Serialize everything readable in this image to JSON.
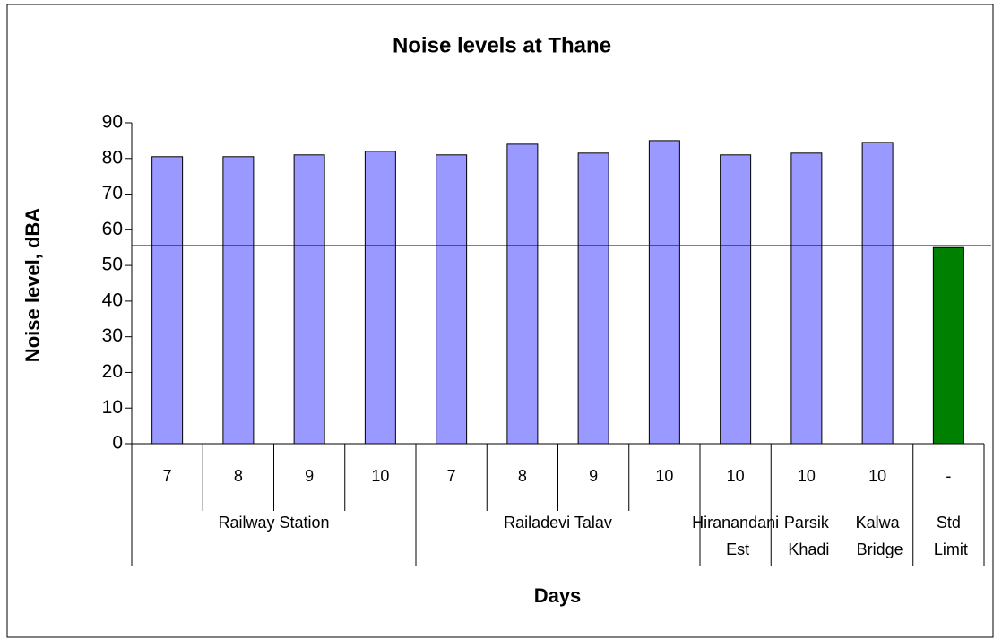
{
  "chart_data": {
    "type": "bar",
    "title": "Noise levels at Thane",
    "xlabel": "Days",
    "ylabel": "Noise level, dBA",
    "ylim": [
      0,
      90
    ],
    "yticks": [
      0,
      10,
      20,
      30,
      40,
      50,
      60,
      70,
      80,
      90
    ],
    "reference_line": 55.5,
    "groups": [
      {
        "name": "Railway Station",
        "categories": [
          "7",
          "8",
          "9",
          "10"
        ],
        "values": [
          80.5,
          80.5,
          81,
          82
        ],
        "color": "#9999ff"
      },
      {
        "name": "Railadevi Talav",
        "categories": [
          "7",
          "8",
          "9",
          "10"
        ],
        "values": [
          81,
          84,
          81.5,
          85
        ],
        "color": "#9999ff"
      },
      {
        "name": "Hiranandani Est",
        "categories": [
          "10"
        ],
        "values": [
          81
        ],
        "color": "#9999ff"
      },
      {
        "name": "Parsik Khadi",
        "categories": [
          "10"
        ],
        "values": [
          81.5
        ],
        "color": "#9999ff"
      },
      {
        "name": "Kalwa Bridge",
        "categories": [
          "10"
        ],
        "values": [
          84.5
        ],
        "color": "#9999ff"
      },
      {
        "name": "Std Limit",
        "categories": [
          "-"
        ],
        "values": [
          55
        ],
        "color": "#008000"
      }
    ]
  }
}
